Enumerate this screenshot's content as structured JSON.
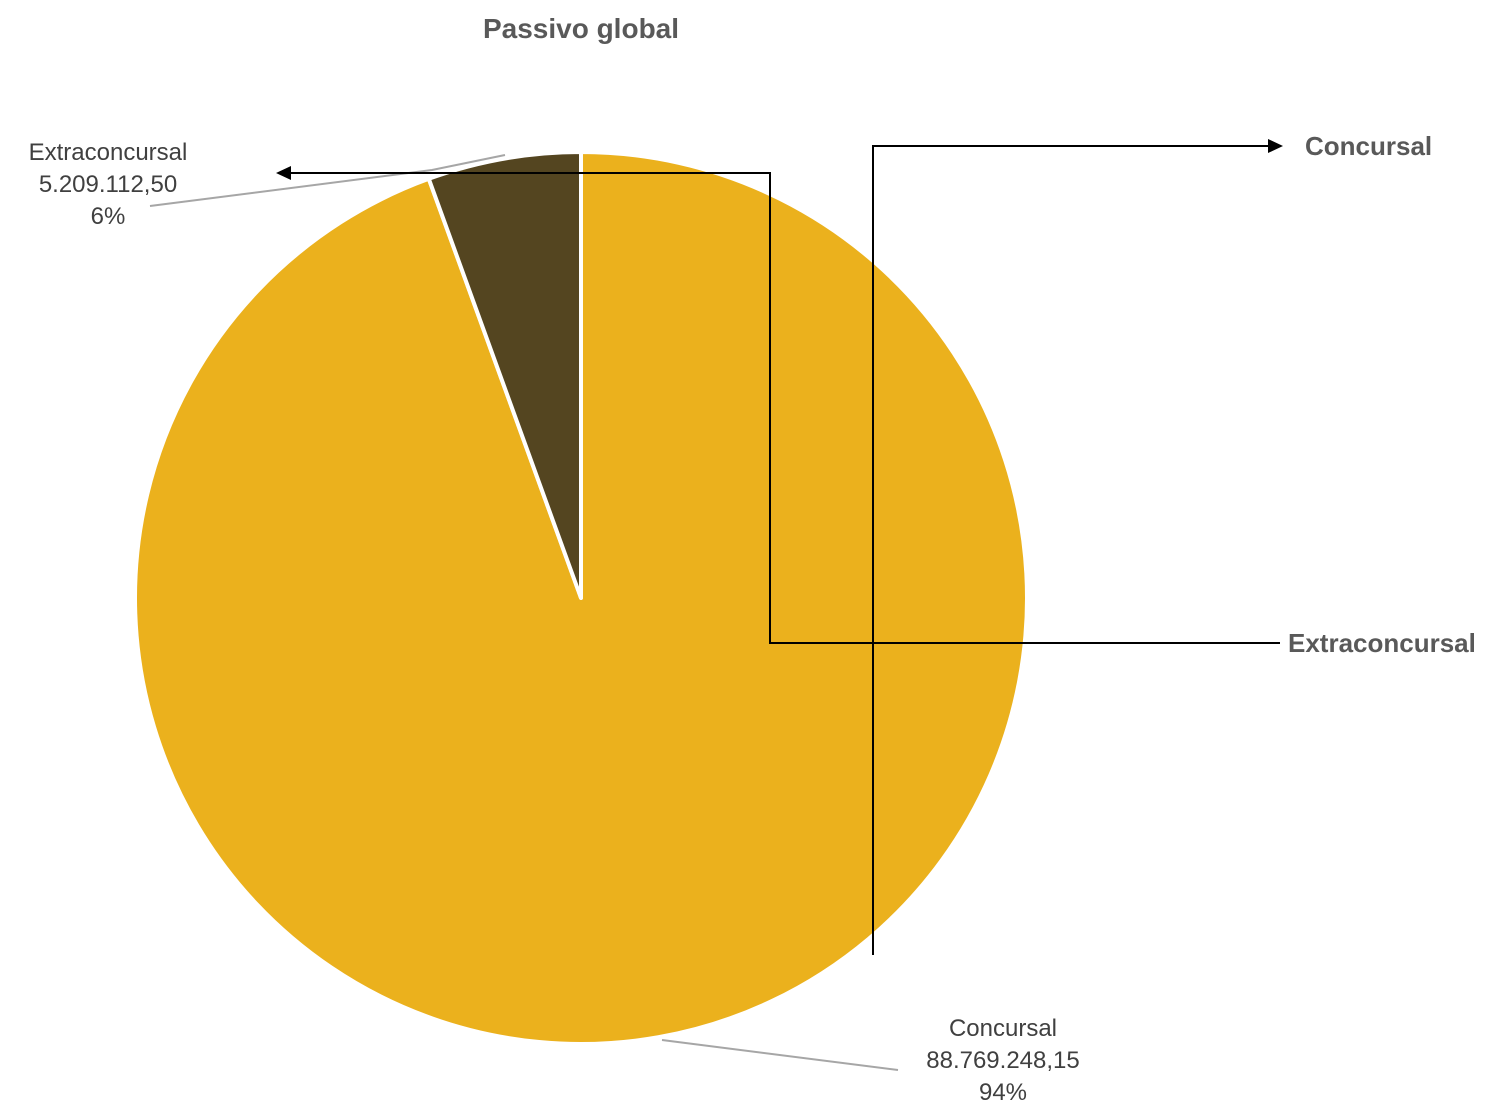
{
  "chart_data": {
    "type": "pie",
    "title": "Passivo global",
    "slices": [
      {
        "name": "Concursal",
        "value": 88769248.15,
        "value_label": "88.769.248,15",
        "percent_label": "94%",
        "color": "#EBB11D"
      },
      {
        "name": "Extraconcursal",
        "value": 5209112.5,
        "value_label": "5.209.112,50",
        "percent_label": "6%",
        "color": "#544520"
      }
    ],
    "start_angle_deg": 0,
    "direction": "counter-clockwise",
    "legend": {
      "placement": "right",
      "items": [
        "Concursal",
        "Extraconcursal"
      ]
    }
  }
}
